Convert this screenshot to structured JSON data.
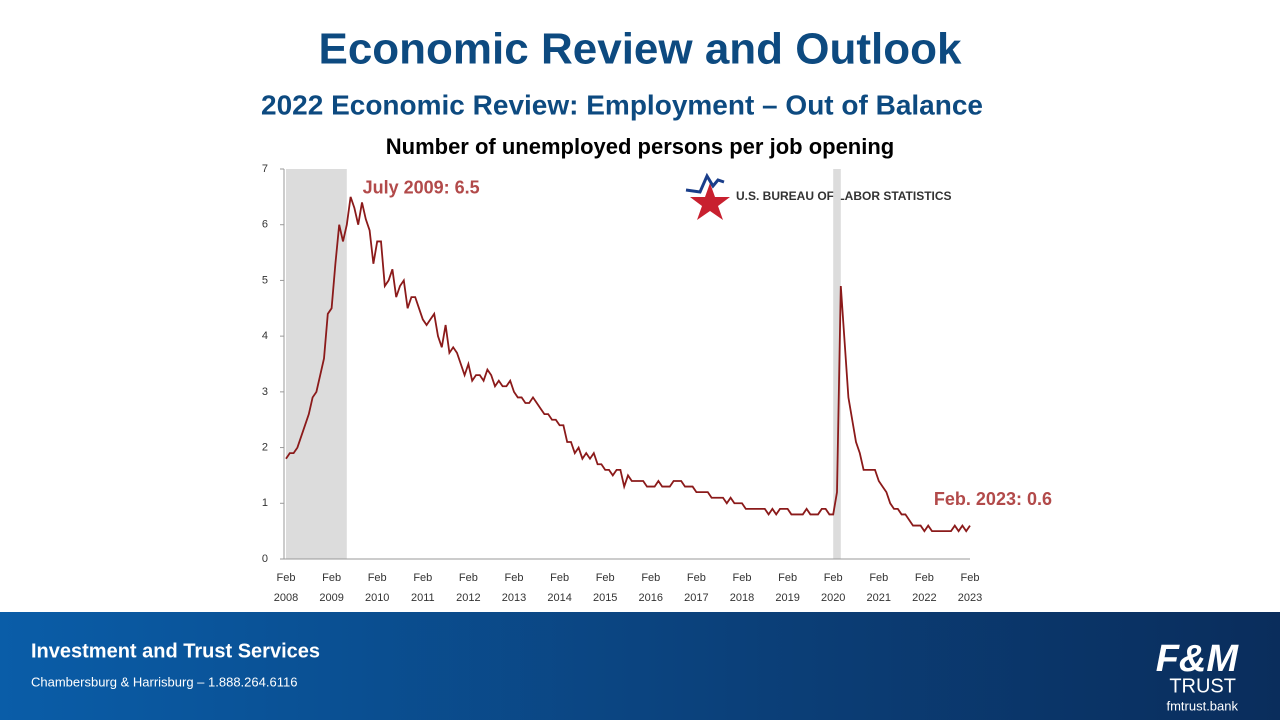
{
  "header": {
    "title": "Economic Review and Outlook",
    "subtitle": "2022 Economic Review: Employment – Out of Balance"
  },
  "chart_data": {
    "type": "line",
    "title": "Number of unemployed persons per job opening",
    "source": "U.S. BUREAU OF LABOR STATISTICS",
    "categories": [
      "Feb 2008",
      null,
      null,
      null,
      null,
      null,
      null,
      null,
      null,
      null,
      null,
      null,
      "Feb 2009",
      null,
      null,
      null,
      null,
      null,
      null,
      null,
      null,
      null,
      null,
      null,
      "Feb 2010",
      null,
      null,
      null,
      null,
      null,
      null,
      null,
      null,
      null,
      null,
      null,
      "Feb 2011",
      null,
      null,
      null,
      null,
      null,
      null,
      null,
      null,
      null,
      null,
      null,
      "Feb 2012",
      null,
      null,
      null,
      null,
      null,
      null,
      null,
      null,
      null,
      null,
      null,
      "Feb 2013",
      null,
      null,
      null,
      null,
      null,
      null,
      null,
      null,
      null,
      null,
      null,
      "Feb 2014",
      null,
      null,
      null,
      null,
      null,
      null,
      null,
      null,
      null,
      null,
      null,
      "Feb 2015",
      null,
      null,
      null,
      null,
      null,
      null,
      null,
      null,
      null,
      null,
      null,
      "Feb 2016",
      null,
      null,
      null,
      null,
      null,
      null,
      null,
      null,
      null,
      null,
      null,
      "Feb 2017",
      null,
      null,
      null,
      null,
      null,
      null,
      null,
      null,
      null,
      null,
      null,
      "Feb 2018",
      null,
      null,
      null,
      null,
      null,
      null,
      null,
      null,
      null,
      null,
      null,
      "Feb 2019",
      null,
      null,
      null,
      null,
      null,
      null,
      null,
      null,
      null,
      null,
      null,
      "Feb 2020",
      null,
      null,
      null,
      null,
      null,
      null,
      null,
      null,
      null,
      null,
      null,
      "Feb 2021",
      null,
      null,
      null,
      null,
      null,
      null,
      null,
      null,
      null,
      null,
      null,
      "Feb 2022",
      null,
      null,
      null,
      null,
      null,
      null,
      null,
      null,
      null,
      null,
      null,
      "Feb 2023"
    ],
    "values": [
      1.8,
      1.9,
      1.9,
      2.0,
      2.2,
      2.4,
      2.6,
      2.9,
      3.0,
      3.3,
      3.6,
      4.4,
      4.5,
      5.3,
      6.0,
      5.7,
      6.0,
      6.5,
      6.3,
      6.0,
      6.4,
      6.1,
      5.9,
      5.3,
      5.7,
      5.7,
      4.9,
      5.0,
      5.2,
      4.7,
      4.9,
      5.0,
      4.5,
      4.7,
      4.7,
      4.5,
      4.3,
      4.2,
      4.3,
      4.4,
      4.0,
      3.8,
      4.2,
      3.7,
      3.8,
      3.7,
      3.5,
      3.3,
      3.5,
      3.2,
      3.3,
      3.3,
      3.2,
      3.4,
      3.3,
      3.1,
      3.2,
      3.1,
      3.1,
      3.2,
      3.0,
      2.9,
      2.9,
      2.8,
      2.8,
      2.9,
      2.8,
      2.7,
      2.6,
      2.6,
      2.5,
      2.5,
      2.4,
      2.4,
      2.1,
      2.1,
      1.9,
      2.0,
      1.8,
      1.9,
      1.8,
      1.9,
      1.7,
      1.7,
      1.6,
      1.6,
      1.5,
      1.6,
      1.6,
      1.3,
      1.5,
      1.4,
      1.4,
      1.4,
      1.4,
      1.3,
      1.3,
      1.3,
      1.4,
      1.3,
      1.3,
      1.3,
      1.4,
      1.4,
      1.4,
      1.3,
      1.3,
      1.3,
      1.2,
      1.2,
      1.2,
      1.2,
      1.1,
      1.1,
      1.1,
      1.1,
      1.0,
      1.1,
      1.0,
      1.0,
      1.0,
      0.9,
      0.9,
      0.9,
      0.9,
      0.9,
      0.9,
      0.8,
      0.9,
      0.8,
      0.9,
      0.9,
      0.9,
      0.8,
      0.8,
      0.8,
      0.8,
      0.9,
      0.8,
      0.8,
      0.8,
      0.9,
      0.9,
      0.8,
      0.8,
      1.2,
      4.9,
      3.9,
      2.9,
      2.5,
      2.1,
      1.9,
      1.6,
      1.6,
      1.6,
      1.6,
      1.4,
      1.3,
      1.2,
      1.0,
      0.9,
      0.9,
      0.8,
      0.8,
      0.7,
      0.6,
      0.6,
      0.6,
      0.5,
      0.6,
      0.5,
      0.5,
      0.5,
      0.5,
      0.5,
      0.5,
      0.6,
      0.5,
      0.6,
      0.5,
      0.6
    ],
    "color": "#8b1a1a",
    "recessions": [
      [
        0,
        16
      ],
      [
        144,
        146
      ]
    ],
    "ylim": [
      0,
      7
    ],
    "yticks": [
      0,
      1,
      2,
      3,
      4,
      5,
      6,
      7
    ],
    "annotations": [
      {
        "text": "July 2009: 6.5",
        "index": 17
      },
      {
        "text": "Feb. 2023: 0.6",
        "index": 180
      }
    ]
  },
  "footer": {
    "title": "Investment and Trust Services",
    "contact": "Chambersburg & Harrisburg – 1.888.264.6116",
    "logo": "F&M",
    "logo_sub": "TRUST",
    "website": "fmtrust.bank"
  }
}
